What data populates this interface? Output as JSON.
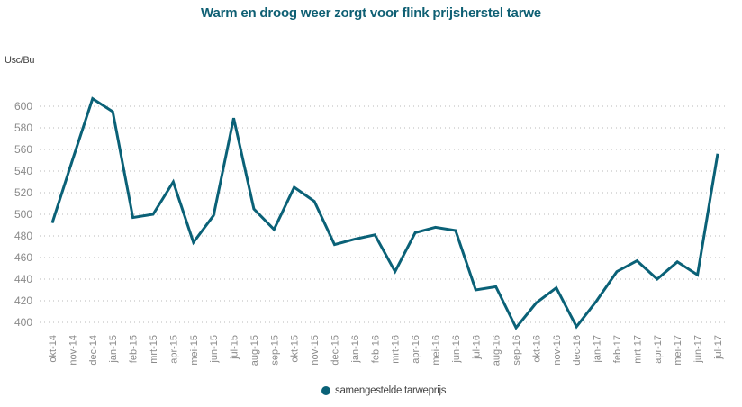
{
  "chart_data": {
    "type": "line",
    "title": "Warm en droog weer zorgt voor flink prijsherstel tarwe",
    "xlabel": "",
    "ylabel": "Usc/Bu",
    "ylim": [
      400,
      600
    ],
    "yticks": [
      400,
      420,
      440,
      460,
      480,
      500,
      520,
      540,
      560,
      580,
      600
    ],
    "grid": true,
    "legend_position": "bottom-center",
    "categories": [
      "okt-14",
      "nov-14",
      "dec-14",
      "jan-15",
      "feb-15",
      "mrt-15",
      "apr-15",
      "mei-15",
      "jun-15",
      "jul-15",
      "aug-15",
      "sep-15",
      "okt-15",
      "nov-15",
      "dec-15",
      "jan-16",
      "feb-16",
      "mrt-16",
      "apr-16",
      "mei-16",
      "jun-16",
      "jul-16",
      "aug-16",
      "sep-16",
      "okt-16",
      "nov-16",
      "dec-16",
      "jan-17",
      "feb-17",
      "mrt-17",
      "apr-17",
      "mei-17",
      "jun-17",
      "jul-17"
    ],
    "series": [
      {
        "name": "samengestelde tarweprijs",
        "color": "#0a6177",
        "values": [
          492,
          550,
          607,
          595,
          497,
          500,
          530,
          474,
          499,
          589,
          505,
          486,
          525,
          512,
          472,
          477,
          481,
          447,
          483,
          488,
          485,
          430,
          433,
          395,
          418,
          432,
          396,
          420,
          447,
          457,
          440,
          456,
          444,
          556
        ]
      }
    ]
  }
}
